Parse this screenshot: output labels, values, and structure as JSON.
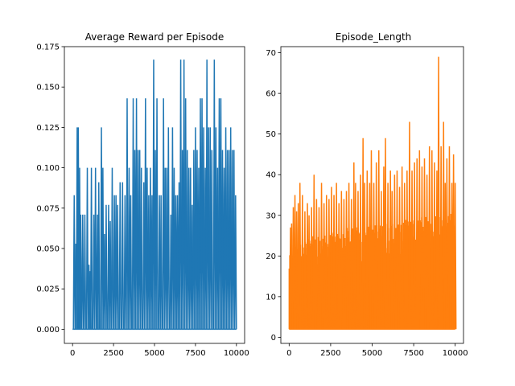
{
  "chart_data": [
    {
      "type": "line",
      "title": "Average Reward per Episode",
      "xlabel": "",
      "ylabel": "",
      "xlim": [
        -500,
        10500
      ],
      "ylim": [
        -0.00875,
        0.175
      ],
      "x_ticks": [
        0,
        2500,
        5000,
        7500,
        10000
      ],
      "y_ticks": [
        0.0,
        0.025,
        0.05,
        0.075,
        0.1,
        0.125,
        0.15,
        0.175
      ],
      "x_tick_labels": [
        "0",
        "2500",
        "5000",
        "7500",
        "10000"
      ],
      "y_tick_labels": [
        "0.000",
        "0.025",
        "0.050",
        "0.075",
        "0.100",
        "0.125",
        "0.150",
        "0.175"
      ],
      "grid": false,
      "series": [
        {
          "color": "#1f77b4",
          "x_range": [
            0,
            10000
          ],
          "baseline": 0.0,
          "spikes": [
            [
              100,
              0.083
            ],
            [
              200,
              0.053
            ],
            [
              280,
              0.125
            ],
            [
              350,
              0.125
            ],
            [
              430,
              0.1
            ],
            [
              500,
              0.071
            ],
            [
              620,
              0.071
            ],
            [
              750,
              0.071
            ],
            [
              900,
              0.1
            ],
            [
              1000,
              0.04
            ],
            [
              1080,
              0.036
            ],
            [
              1150,
              0.1
            ],
            [
              1300,
              0.071
            ],
            [
              1400,
              0.1
            ],
            [
              1520,
              0.071
            ],
            [
              1600,
              0.091
            ],
            [
              1760,
              0.125
            ],
            [
              1850,
              0.1
            ],
            [
              1950,
              0.059
            ],
            [
              2050,
              0.077
            ],
            [
              2200,
              0.077
            ],
            [
              2300,
              0.067
            ],
            [
              2420,
              0.1
            ],
            [
              2550,
              0.083
            ],
            [
              2650,
              0.083
            ],
            [
              2750,
              0.077
            ],
            [
              2900,
              0.091
            ],
            [
              3050,
              0.091
            ],
            [
              3200,
              0.083
            ],
            [
              3330,
              0.143
            ],
            [
              3450,
              0.1
            ],
            [
              3550,
              0.083
            ],
            [
              3700,
              0.143
            ],
            [
              3800,
              0.111
            ],
            [
              3900,
              0.143
            ],
            [
              4000,
              0.111
            ],
            [
              4100,
              0.111
            ],
            [
              4200,
              0.1
            ],
            [
              4350,
              0.091
            ],
            [
              4450,
              0.143
            ],
            [
              4550,
              0.1
            ],
            [
              4650,
              0.083
            ],
            [
              4750,
              0.1
            ],
            [
              4850,
              0.083
            ],
            [
              4950,
              0.167
            ],
            [
              5050,
              0.111
            ],
            [
              5150,
              0.143
            ],
            [
              5300,
              0.083
            ],
            [
              5400,
              0.083
            ],
            [
              5550,
              0.143
            ],
            [
              5650,
              0.1
            ],
            [
              5750,
              0.1
            ],
            [
              5850,
              0.125
            ],
            [
              6000,
              0.071
            ],
            [
              6100,
              0.125
            ],
            [
              6200,
              0.1
            ],
            [
              6300,
              0.083
            ],
            [
              6400,
              0.083
            ],
            [
              6500,
              0.091
            ],
            [
              6600,
              0.167
            ],
            [
              6700,
              0.111
            ],
            [
              6800,
              0.167
            ],
            [
              6900,
              0.143
            ],
            [
              7000,
              0.111
            ],
            [
              7100,
              0.1
            ],
            [
              7200,
              0.1
            ],
            [
              7300,
              0.077
            ],
            [
              7400,
              0.111
            ],
            [
              7500,
              0.125
            ],
            [
              7600,
              0.111
            ],
            [
              7700,
              0.1
            ],
            [
              7800,
              0.143
            ],
            [
              7900,
              0.143
            ],
            [
              8000,
              0.125
            ],
            [
              8100,
              0.1
            ],
            [
              8200,
              0.167
            ],
            [
              8300,
              0.125
            ],
            [
              8400,
              0.125
            ],
            [
              8500,
              0.111
            ],
            [
              8650,
              0.167
            ],
            [
              8750,
              0.125
            ],
            [
              8850,
              0.1
            ],
            [
              8950,
              0.143
            ],
            [
              9050,
              0.143
            ],
            [
              9150,
              0.111
            ],
            [
              9250,
              0.1
            ],
            [
              9350,
              0.125
            ],
            [
              9450,
              0.111
            ],
            [
              9550,
              0.111
            ],
            [
              9650,
              0.125
            ],
            [
              9750,
              0.111
            ],
            [
              9850,
              0.111
            ],
            [
              9950,
              0.083
            ]
          ]
        }
      ]
    },
    {
      "type": "line",
      "title": "Episode_Length",
      "xlabel": "",
      "ylabel": "",
      "xlim": [
        -500,
        10500
      ],
      "ylim": [
        -1.5,
        71.5
      ],
      "x_ticks": [
        0,
        2500,
        5000,
        7500,
        10000
      ],
      "y_ticks": [
        0,
        10,
        20,
        30,
        40,
        50,
        60,
        70
      ],
      "x_tick_labels": [
        "0",
        "2500",
        "5000",
        "7500",
        "10000"
      ],
      "y_tick_labels": [
        "0",
        "10",
        "20",
        "30",
        "40",
        "50",
        "60",
        "70"
      ],
      "grid": false,
      "series": [
        {
          "color": "#ff7f0e",
          "x_range": [
            0,
            10000
          ],
          "baseline": 2,
          "band_envelope": [
            [
              0,
              20
            ],
            [
              500,
              23
            ],
            [
              1000,
              24
            ],
            [
              1500,
              25
            ],
            [
              2000,
              25
            ],
            [
              2500,
              26
            ],
            [
              3000,
              26
            ],
            [
              3500,
              27
            ],
            [
              4000,
              27
            ],
            [
              4500,
              28
            ],
            [
              5000,
              28
            ],
            [
              5500,
              28
            ],
            [
              6000,
              29
            ],
            [
              6500,
              29
            ],
            [
              7000,
              29
            ],
            [
              7500,
              29
            ],
            [
              8000,
              30
            ],
            [
              8500,
              30
            ],
            [
              9000,
              31
            ],
            [
              9500,
              31
            ],
            [
              10000,
              31
            ]
          ],
          "spikes": [
            [
              80,
              27
            ],
            [
              150,
              28
            ],
            [
              250,
              32
            ],
            [
              350,
              35
            ],
            [
              450,
              31
            ],
            [
              550,
              33
            ],
            [
              650,
              38
            ],
            [
              800,
              35
            ],
            [
              950,
              31
            ],
            [
              1100,
              33
            ],
            [
              1200,
              30
            ],
            [
              1350,
              32
            ],
            [
              1500,
              40
            ],
            [
              1650,
              34
            ],
            [
              1800,
              32
            ],
            [
              1950,
              38
            ],
            [
              2100,
              33
            ],
            [
              2250,
              35
            ],
            [
              2400,
              34
            ],
            [
              2550,
              37
            ],
            [
              2700,
              35
            ],
            [
              2850,
              38
            ],
            [
              3000,
              33
            ],
            [
              3150,
              36
            ],
            [
              3300,
              34
            ],
            [
              3450,
              36
            ],
            [
              3600,
              38
            ],
            [
              3750,
              34
            ],
            [
              3900,
              43
            ],
            [
              4000,
              38
            ],
            [
              4150,
              36
            ],
            [
              4300,
              40
            ],
            [
              4450,
              49
            ],
            [
              4550,
              38
            ],
            [
              4700,
              41
            ],
            [
              4850,
              38
            ],
            [
              4950,
              46
            ],
            [
              5100,
              38
            ],
            [
              5250,
              43
            ],
            [
              5400,
              46
            ],
            [
              5550,
              36
            ],
            [
              5700,
              42
            ],
            [
              5800,
              49
            ],
            [
              5950,
              38
            ],
            [
              6100,
              41
            ],
            [
              6200,
              36
            ],
            [
              6350,
              40
            ],
            [
              6500,
              41
            ],
            [
              6650,
              37
            ],
            [
              6800,
              42
            ],
            [
              6950,
              38
            ],
            [
              7100,
              41
            ],
            [
              7250,
              53
            ],
            [
              7400,
              41
            ],
            [
              7550,
              43
            ],
            [
              7700,
              44
            ],
            [
              7850,
              46
            ],
            [
              8000,
              42
            ],
            [
              8150,
              44
            ],
            [
              8300,
              40
            ],
            [
              8450,
              47
            ],
            [
              8600,
              46
            ],
            [
              8750,
              43
            ],
            [
              8900,
              41
            ],
            [
              9000,
              69
            ],
            [
              9150,
              47
            ],
            [
              9300,
              53
            ],
            [
              9400,
              38
            ],
            [
              9500,
              44
            ],
            [
              9650,
              47
            ],
            [
              9800,
              38
            ],
            [
              9900,
              45
            ],
            [
              10000,
              38
            ]
          ]
        }
      ]
    }
  ]
}
